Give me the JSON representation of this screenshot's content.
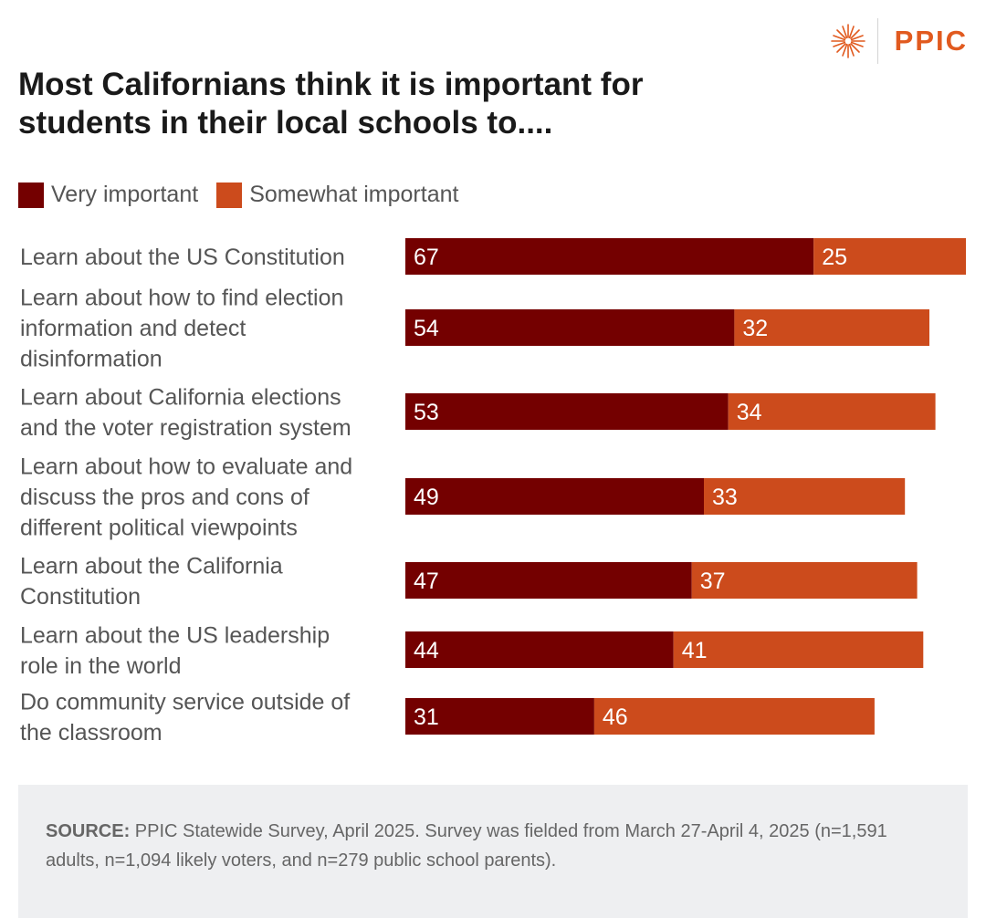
{
  "brand": {
    "name": "PPIC",
    "logo_icon": "starburst-icon",
    "color": "#e15a1f"
  },
  "chart_data": {
    "type": "bar",
    "orientation": "horizontal",
    "stacked": true,
    "title": "Most Californians think it is important for students in their local schools to....",
    "categories": [
      "Learn about the US Constitution",
      "Learn about how to find election information and detect disinformation",
      "Learn about California elections and the voter registration system",
      "Learn about how to evaluate and discuss the pros and cons of different political viewpoints",
      "Learn about the California Constitution",
      "Learn about the US leadership role in the world",
      "Do community service outside of the classroom"
    ],
    "category_lines": [
      [
        "Learn about the US Constitution"
      ],
      [
        "Learn about how to find election",
        "information and detect",
        "disinformation"
      ],
      [
        "Learn about California elections",
        "and the voter registration system"
      ],
      [
        "Learn about how to evaluate and",
        "discuss the pros and cons of",
        "different political viewpoints"
      ],
      [
        "Learn about the California",
        "Constitution"
      ],
      [
        "Learn about the US leadership",
        "role in the world"
      ],
      [
        "Do community service outside of",
        "the classroom"
      ]
    ],
    "series": [
      {
        "name": "Very important",
        "color": "#740000",
        "values": [
          67,
          54,
          53,
          49,
          47,
          44,
          31
        ]
      },
      {
        "name": "Somewhat important",
        "color": "#cc4b1c",
        "values": [
          25,
          32,
          34,
          33,
          37,
          41,
          46
        ]
      }
    ],
    "xlim": [
      0,
      92
    ],
    "data_labels": true,
    "grid": false,
    "legend": "top-left"
  },
  "source": {
    "label": "SOURCE:",
    "text": "PPIC Statewide Survey, April 2025. Survey was fielded from March 27-April 4, 2025 (n=1,591 adults, n=1,094 likely voters, and n=279 public school parents)."
  }
}
